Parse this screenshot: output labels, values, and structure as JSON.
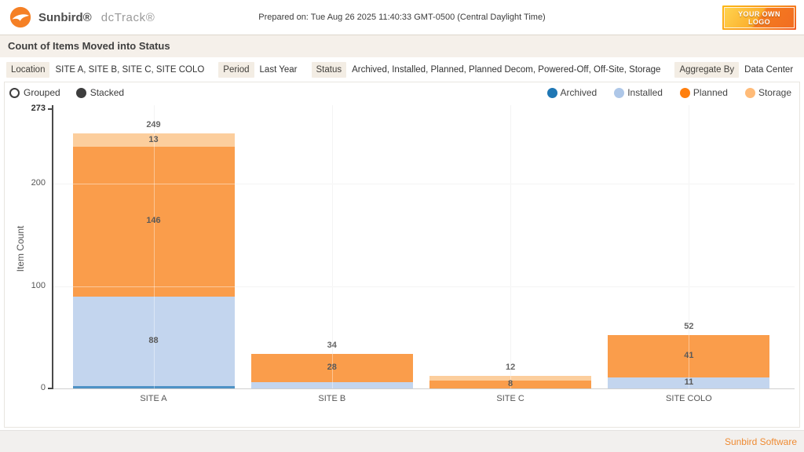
{
  "header": {
    "brand": "Sunbird®",
    "product": "dcTrack®",
    "prepared": "Prepared on: Tue Aug 26 2025 11:40:33 GMT-0500 (Central Daylight Time)",
    "logo_badge_line1": "YOUR OWN",
    "logo_badge_line2": "LOGO"
  },
  "title": "Count of Items Moved into Status",
  "filters": [
    {
      "label": "Location",
      "value": "SITE A, SITE B, SITE C, SITE COLO"
    },
    {
      "label": "Period",
      "value": "Last Year"
    },
    {
      "label": "Status",
      "value": "Archived, Installed, Planned, Planned Decom, Powered-Off, Off-Site, Storage"
    },
    {
      "label": "Aggregate By",
      "value": "Data Center"
    }
  ],
  "view_modes": {
    "grouped": "Grouped",
    "stacked": "Stacked",
    "selected": "Stacked"
  },
  "footer": "Sunbird Software",
  "colors": {
    "brand_orange": "#f58025",
    "titlebar_bg": "#f5f0ea",
    "chip_bg": "#f3ede4",
    "axis": "#4a4a4a",
    "gridline": "#eaeaea",
    "footer_text": "#ef8b32"
  },
  "chart_data": {
    "type": "bar",
    "stacked": true,
    "title": "Count of Items Moved into Status",
    "ylabel": "Item Count",
    "categories": [
      "SITE A",
      "SITE B",
      "SITE C",
      "SITE COLO"
    ],
    "series": [
      {
        "name": "Archived",
        "legend_color": "#1f77b4",
        "fill": "#4f92c5",
        "values": [
          2,
          0,
          0,
          0
        ],
        "show_label": [
          false,
          false,
          false,
          false
        ]
      },
      {
        "name": "Installed",
        "legend_color": "#aec7e8",
        "fill": "#c3d5ee",
        "values": [
          88,
          6,
          0,
          11
        ],
        "show_label": [
          true,
          false,
          false,
          true
        ]
      },
      {
        "name": "Planned",
        "legend_color": "#ff7f0e",
        "fill": "#fa9d4b",
        "values": [
          146,
          28,
          8,
          41
        ],
        "show_label": [
          true,
          true,
          true,
          true
        ]
      },
      {
        "name": "Storage",
        "legend_color": "#ffbb78",
        "fill": "#fcce9d",
        "values": [
          13,
          0,
          4,
          0
        ],
        "show_label": [
          true,
          false,
          false,
          false
        ]
      }
    ],
    "totals": [
      249,
      34,
      12,
      52
    ],
    "yticks": [
      0,
      100,
      200,
      273
    ],
    "grid_yticks": [
      100,
      200
    ],
    "ymax": 273,
    "ylim": [
      0,
      273
    ],
    "legend_position": "top-right",
    "grid": true
  }
}
